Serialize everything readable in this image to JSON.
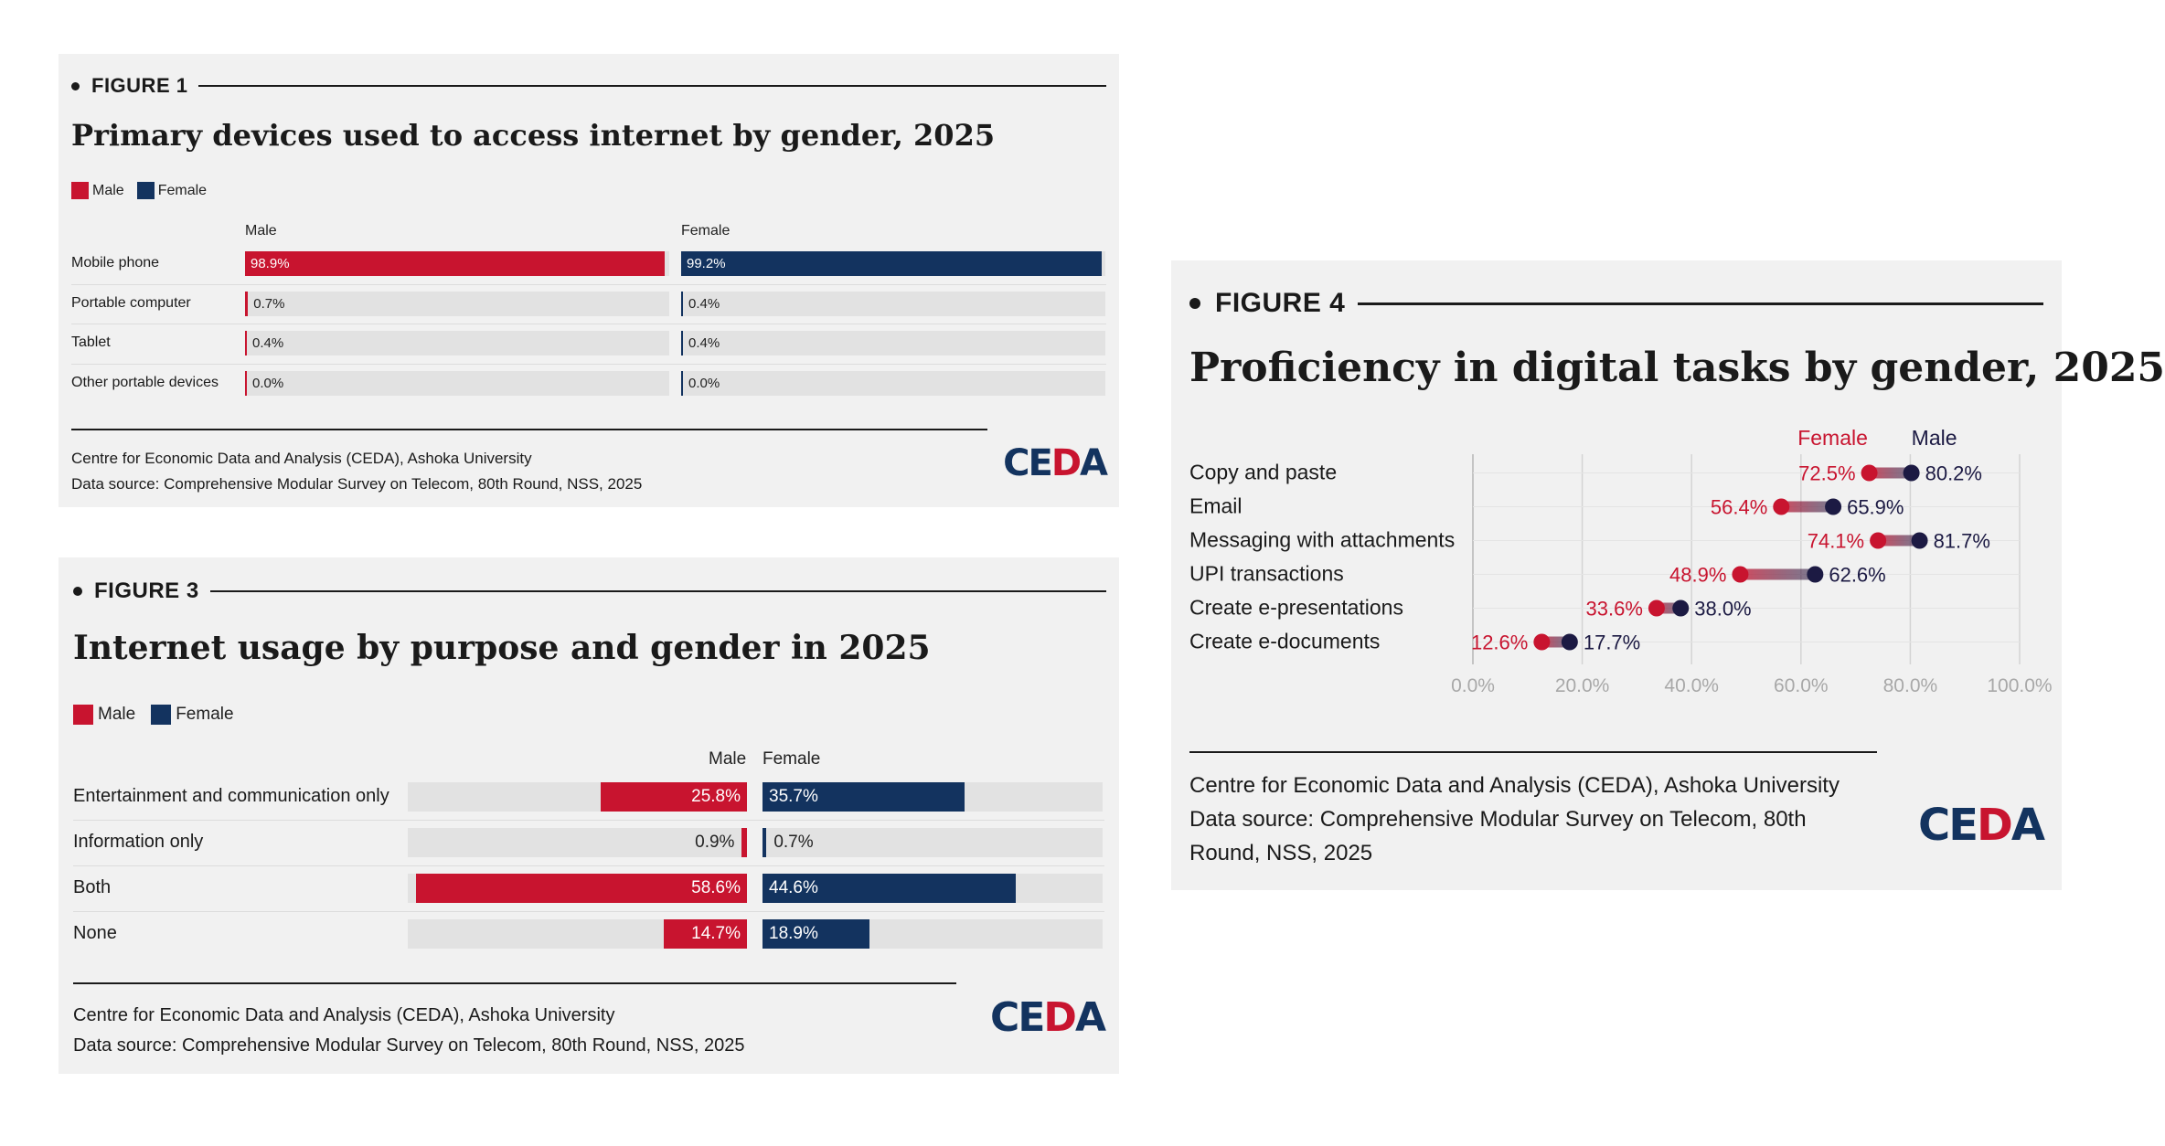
{
  "colors": {
    "male": "#c8142f",
    "female": "#13335f",
    "female_dot": "#c8142f",
    "male_dot": "#1c1a43"
  },
  "fig1": {
    "label": "FIGURE 1",
    "footer_line1": "Centre for Economic Data and Analysis (CEDA), Ashoka University",
    "footer_line2": "Data source: Comprehensive Modular Survey on Telecom, 80th Round, NSS, 2025",
    "logo_c": "CE",
    "logo_a": "D",
    "logo_d": "A",
    "chart_data": {
      "type": "bar",
      "title": "Primary devices used to access internet by gender, 2025",
      "legend": [
        "Male",
        "Female"
      ],
      "panel_labels": [
        "Male",
        "Female"
      ],
      "categories": [
        "Mobile phone",
        "Portable computer",
        "Tablet",
        "Other portable devices"
      ],
      "series": [
        {
          "name": "Male",
          "values": [
            98.9,
            0.7,
            0.4,
            0.0
          ],
          "labels": [
            "98.9%",
            "0.7%",
            "0.4%",
            "0.0%"
          ]
        },
        {
          "name": "Female",
          "values": [
            99.2,
            0.4,
            0.4,
            0.0
          ],
          "labels": [
            "99.2%",
            "0.4%",
            "0.4%",
            "0.0%"
          ]
        }
      ],
      "ylim": [
        0,
        100
      ]
    }
  },
  "fig3": {
    "label": "FIGURE 3",
    "footer_line1": "Centre for Economic Data and Analysis (CEDA), Ashoka University",
    "footer_line2": "Data source: Comprehensive Modular Survey on Telecom, 80th Round, NSS, 2025",
    "logo_c": "CE",
    "logo_a": "D",
    "logo_d": "A",
    "chart_data": {
      "type": "bar",
      "title": "Internet usage by purpose and gender in 2025",
      "legend": [
        "Male",
        "Female"
      ],
      "panel_labels": [
        "Male",
        "Female"
      ],
      "categories": [
        "Entertainment and communication only",
        "Information only",
        "Both",
        "None"
      ],
      "series": [
        {
          "name": "Male",
          "values": [
            25.8,
            0.9,
            58.6,
            14.7
          ],
          "labels": [
            "25.8%",
            "0.9%",
            "58.6%",
            "14.7%"
          ]
        },
        {
          "name": "Female",
          "values": [
            35.7,
            0.7,
            44.6,
            18.9
          ],
          "labels": [
            "35.7%",
            "0.7%",
            "44.6%",
            "18.9%"
          ]
        }
      ],
      "ylim": [
        0,
        60
      ]
    }
  },
  "fig4": {
    "label": "FIGURE 4",
    "footer_line1": "Centre for Economic Data and Analysis (CEDA), Ashoka University",
    "footer_line2": "Data source: Comprehensive Modular Survey on Telecom, 80th",
    "footer_line3": "Round, NSS, 2025",
    "logo_c": "CE",
    "logo_a": "D",
    "logo_d": "A",
    "chart_data": {
      "type": "scatter",
      "subtype": "dumbbell",
      "title": "Proficiency in digital tasks by gender, 2025",
      "legend": [
        "Female",
        "Male"
      ],
      "categories": [
        "Copy and paste",
        "Email",
        "Messaging with attachments",
        "UPI transactions",
        "Create e-presentations",
        "Create e-documents"
      ],
      "series": [
        {
          "name": "Female",
          "values": [
            72.5,
            56.4,
            74.1,
            48.9,
            33.6,
            12.6
          ],
          "labels": [
            "72.5%",
            "56.4%",
            "74.1%",
            "48.9%",
            "33.6%",
            "12.6%"
          ]
        },
        {
          "name": "Male",
          "values": [
            80.2,
            65.9,
            81.7,
            62.6,
            38.0,
            17.7
          ],
          "labels": [
            "80.2%",
            "65.9%",
            "81.7%",
            "62.6%",
            "38.0%",
            "17.7%"
          ]
        }
      ],
      "xticks": [
        "0.0%",
        "20.0%",
        "40.0%",
        "60.0%",
        "80.0%",
        "100.0%"
      ],
      "xlim": [
        0,
        100
      ],
      "grid": true
    }
  }
}
